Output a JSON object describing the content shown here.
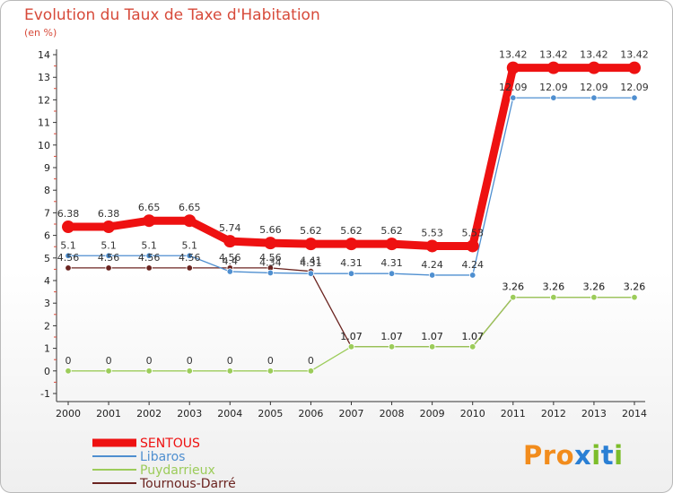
{
  "header": {
    "title": "Evolution du Taux de Taxe d'Habitation",
    "unit": "(en %)"
  },
  "logo": {
    "letters": [
      "P",
      "r",
      "o",
      "x",
      "i",
      "t",
      "i"
    ],
    "colors": [
      "#f28c1c",
      "#f28c1c",
      "#f28c1c",
      "#2a7fd4",
      "#7cbd2a",
      "#2a7fd4",
      "#7cbd2a"
    ]
  },
  "colors": {
    "title": "#d74a3a",
    "axis": "#333333",
    "tick_text": "#222222",
    "dashed_tick": "#d94a3a"
  },
  "chart_data": {
    "type": "line",
    "categories": [
      "2000",
      "2001",
      "2002",
      "2003",
      "2004",
      "2005",
      "2006",
      "2007",
      "2008",
      "2009",
      "2010",
      "2011",
      "2012",
      "2013",
      "2014"
    ],
    "ylim": [
      -1,
      14
    ],
    "yticks": [
      -1,
      0,
      1,
      2,
      3,
      4,
      5,
      6,
      7,
      8,
      9,
      10,
      11,
      12,
      13,
      14
    ],
    "title": "Evolution du Taux de Taxe d'Habitation",
    "ylabel": "(en %)",
    "legend_position": "bottom-left",
    "grid": false,
    "series": [
      {
        "name": "SENTOUS",
        "color": "#ee1111",
        "values": [
          6.38,
          6.38,
          6.65,
          6.65,
          5.74,
          5.66,
          5.62,
          5.62,
          5.62,
          5.53,
          5.53,
          13.42,
          13.42,
          13.42,
          13.42
        ],
        "labels": [
          "6.38",
          "6.38",
          "6.65",
          "6.65",
          "5.74",
          "5.66",
          "5.62",
          "5.62",
          "5.62",
          "5.53",
          "5.53",
          "13.42",
          "13.42",
          "13.42",
          "13.42"
        ]
      },
      {
        "name": "Libaros",
        "color": "#4f8fd0",
        "values": [
          5.1,
          5.1,
          5.1,
          5.1,
          4.4,
          4.34,
          4.31,
          4.31,
          4.31,
          4.24,
          4.24,
          12.09,
          12.09,
          12.09,
          12.09
        ],
        "labels": [
          "5.1",
          "5.1",
          "5.1",
          "5.1",
          "4.4",
          "4.34",
          "4.31",
          "4.31",
          "4.31",
          "4.24",
          "4.24",
          "12.09",
          "12.09",
          "12.09",
          "12.09"
        ]
      },
      {
        "name": "Puydarrieux",
        "color": "#9ccc5a",
        "values": [
          0,
          0,
          0,
          0,
          0,
          0,
          0,
          1.07,
          1.07,
          1.07,
          1.07,
          3.26,
          3.26,
          3.26,
          3.26
        ],
        "labels": [
          "0",
          "0",
          "0",
          "0",
          "0",
          "0",
          "0",
          "1.07",
          "1.07",
          "1.07",
          "1.07",
          "3.26",
          "3.26",
          "3.26",
          "3.26"
        ]
      },
      {
        "name": "Tournous-Darré",
        "color": "#6b2420",
        "values": [
          4.56,
          4.56,
          4.56,
          4.56,
          4.56,
          4.56,
          4.41,
          1.07,
          1.07,
          1.07,
          1.07,
          3.26,
          3.26,
          3.26,
          3.26
        ],
        "labels": [
          "4.56",
          "4.56",
          "4.56",
          "4.56",
          "4.56",
          "4.56",
          "4.41",
          "1.07",
          "1.07",
          "1.07",
          "1.07",
          "3.26",
          "3.26",
          "3.26",
          "3.26"
        ]
      }
    ]
  }
}
